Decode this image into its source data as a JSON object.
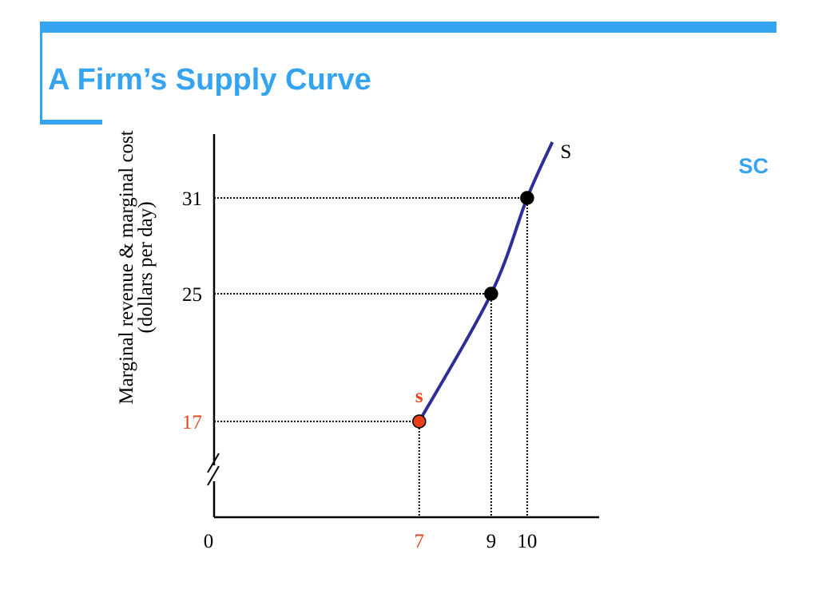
{
  "title": "A Firm’s Supply Curve",
  "corner_label": "SC",
  "chart_data": {
    "type": "line",
    "y_label": [
      "Marginal revenue & marginal cost",
      "(dollars per day)"
    ],
    "origin_label": "0",
    "axis_break": true,
    "xlim": [
      1.3,
      12
    ],
    "ylim": [
      11,
      35
    ],
    "xticks": [
      7,
      9,
      10
    ],
    "yticks": [
      17,
      25,
      31
    ],
    "series": [
      {
        "name": "S",
        "color": "#2e2e96",
        "x": [
          7,
          9,
          10,
          10.7
        ],
        "values": [
          17,
          25,
          31,
          34.5
        ]
      }
    ],
    "markers": [
      {
        "x": 7,
        "y": 17,
        "color": "#e8401c",
        "label": "s"
      },
      {
        "x": 9,
        "y": 25,
        "color": "#000000"
      },
      {
        "x": 10,
        "y": 31,
        "color": "#000000"
      }
    ]
  }
}
